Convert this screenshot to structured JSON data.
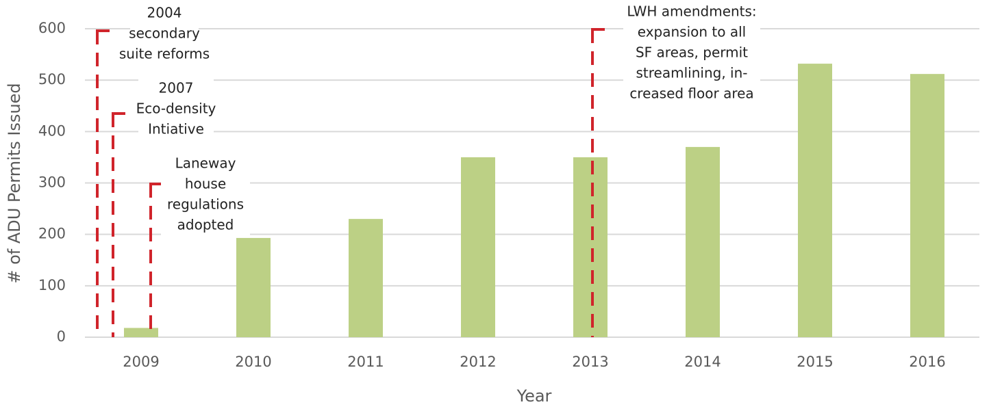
{
  "chart_data": {
    "type": "bar",
    "x_label": "Year",
    "y_label": "# of ADU Permits Issued",
    "categories": [
      "2009",
      "2010",
      "2011",
      "2012",
      "2013",
      "2014",
      "2015",
      "2016"
    ],
    "values": [
      18,
      193,
      230,
      350,
      350,
      370,
      532,
      512
    ],
    "color": "#bcd085",
    "ylim": [
      0,
      600
    ],
    "yticks": [
      0,
      100,
      200,
      300,
      400,
      500,
      600
    ],
    "grid": true,
    "annotation_color": "#d0242b",
    "annotations": [
      [
        "2004",
        "secondary",
        "suite reforms"
      ],
      [
        "2007",
        "Eco-density",
        "Intiative"
      ],
      [
        "Laneway",
        "house",
        "regulations",
        "adopted"
      ],
      [
        "LWH amendments:",
        "expansion to all",
        "SF areas, permit",
        "streamlining, in-",
        "creased floor area"
      ]
    ]
  }
}
